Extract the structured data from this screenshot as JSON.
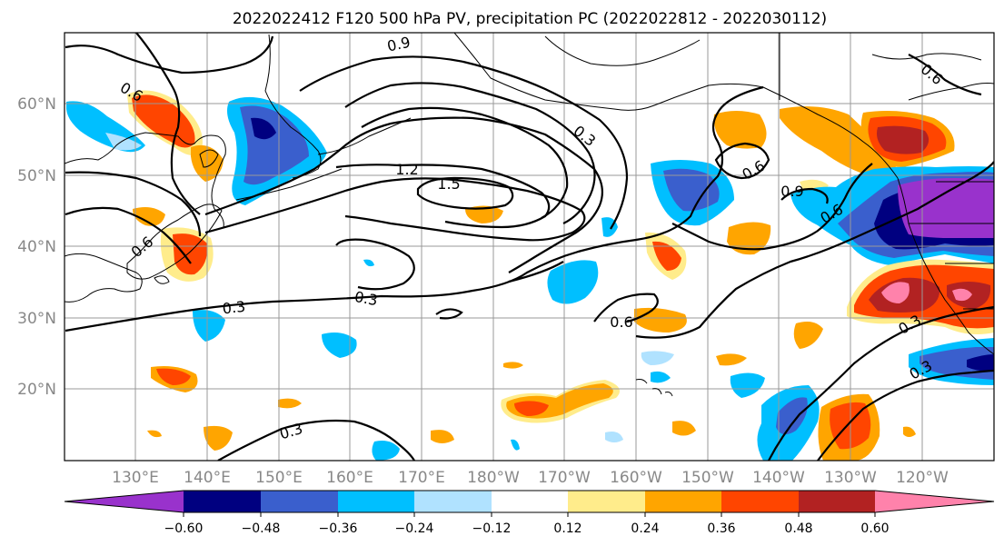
{
  "title": "2022022412 F120 500 hPa PV, precipitation PC (2022022812 - 2022030112)",
  "colors": {
    "n060": "#9932CC",
    "n048": "#000080",
    "n036": "#3A5FCD",
    "n024": "#00BFFF",
    "n012": "#B0E2FF",
    "zero": "#FFFFFF",
    "p012": "#FFEC8B",
    "p024": "#FFA500",
    "p036": "#FF4500",
    "p048": "#B22222",
    "p060": "#FF82AB"
  },
  "lat_labels": [
    "60°N",
    "50°N",
    "40°N",
    "30°N",
    "20°N"
  ],
  "lon_labels": [
    "130°E",
    "140°E",
    "150°E",
    "160°E",
    "170°E",
    "180°W",
    "170°W",
    "160°W",
    "150°W",
    "140°W",
    "130°W",
    "120°W"
  ],
  "colorbar": {
    "ticks": [
      "−0.60",
      "−0.48",
      "−0.36",
      "−0.24",
      "−0.12",
      "0.12",
      "0.24",
      "0.36",
      "0.48",
      "0.60"
    ]
  },
  "contour_labels": [
    "0.6",
    "0.9",
    "1.2",
    "1.5",
    "0.3",
    "0.6",
    "0.3",
    "0.3",
    "0.6",
    "0.6",
    "0.9",
    "0.6",
    "0.6",
    "0.3",
    "0.3",
    "0.3"
  ]
}
